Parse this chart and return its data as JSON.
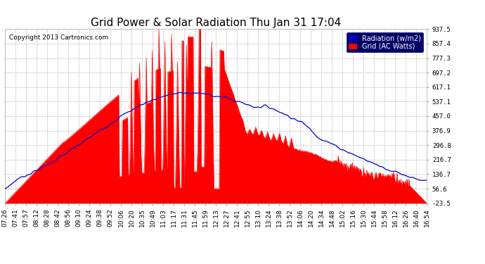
{
  "title": "Grid Power & Solar Radiation Thu Jan 31 17:04",
  "copyright": "Copyright 2013 Cartronics.com",
  "legend_radiation": "Radiation (w/m2)",
  "legend_grid": "Grid (AC Watts)",
  "yticks": [
    937.5,
    857.4,
    777.3,
    697.2,
    617.1,
    537.1,
    457.0,
    376.9,
    296.8,
    216.7,
    136.7,
    56.6,
    -23.5
  ],
  "ymin": -23.5,
  "ymax": 937.5,
  "bg_color": "#ffffff",
  "plot_bg_color": "#ffffff",
  "grid_color": "#bbbbbb",
  "red_color": "#ff0000",
  "blue_color": "#0000cc",
  "title_color": "#000000",
  "copyright_color": "#000000",
  "xtick_labels": [
    "07:26",
    "07:41",
    "07:57",
    "08:12",
    "08:28",
    "08:42",
    "08:56",
    "09:10",
    "09:24",
    "09:38",
    "09:52",
    "10:06",
    "10:20",
    "10:35",
    "10:49",
    "11:03",
    "11:17",
    "11:31",
    "11:45",
    "11:59",
    "12:13",
    "12:27",
    "12:41",
    "12:55",
    "13:10",
    "13:24",
    "13:38",
    "13:52",
    "14:06",
    "14:20",
    "14:34",
    "14:48",
    "15:02",
    "15:16",
    "15:30",
    "15:44",
    "15:58",
    "16:12",
    "16:26",
    "16:40",
    "16:54"
  ]
}
